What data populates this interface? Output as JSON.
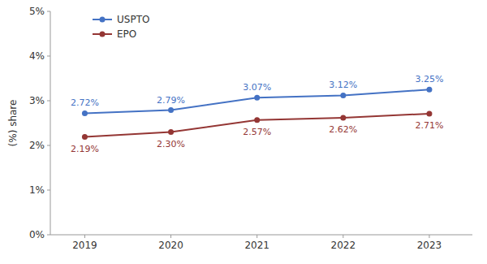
{
  "chart_data": {
    "type": "line",
    "y_label": "(%) share",
    "x": [
      2019,
      2020,
      2021,
      2022,
      2023
    ],
    "xlim": [
      2018.6,
      2023.5
    ],
    "xticks": [
      2019,
      2020,
      2021,
      2022,
      2023
    ],
    "ylim": [
      0,
      5
    ],
    "yticks": [
      {
        "value": 0,
        "label": "0%"
      },
      {
        "value": 1,
        "label": "1%"
      },
      {
        "value": 2,
        "label": "2%"
      },
      {
        "value": 3,
        "label": "3%"
      },
      {
        "value": 4,
        "label": "4%"
      },
      {
        "value": 5,
        "label": "5%"
      }
    ],
    "series": [
      {
        "name": "USPTO",
        "color": "#4472c4",
        "values": [
          2.72,
          2.79,
          3.07,
          3.12,
          3.25
        ],
        "value_labels": [
          "2.72%",
          "2.79%",
          "3.07%",
          "3.12%",
          "3.25%"
        ]
      },
      {
        "name": "EPO",
        "color": "#943634",
        "values": [
          2.19,
          2.3,
          2.57,
          2.62,
          2.71
        ],
        "value_labels": [
          "2.19%",
          "2.30%",
          "2.57%",
          "2.62%",
          "2.71%"
        ]
      }
    ],
    "marker": "circle",
    "data_labels": true,
    "grid": false,
    "legend": "upper left"
  }
}
